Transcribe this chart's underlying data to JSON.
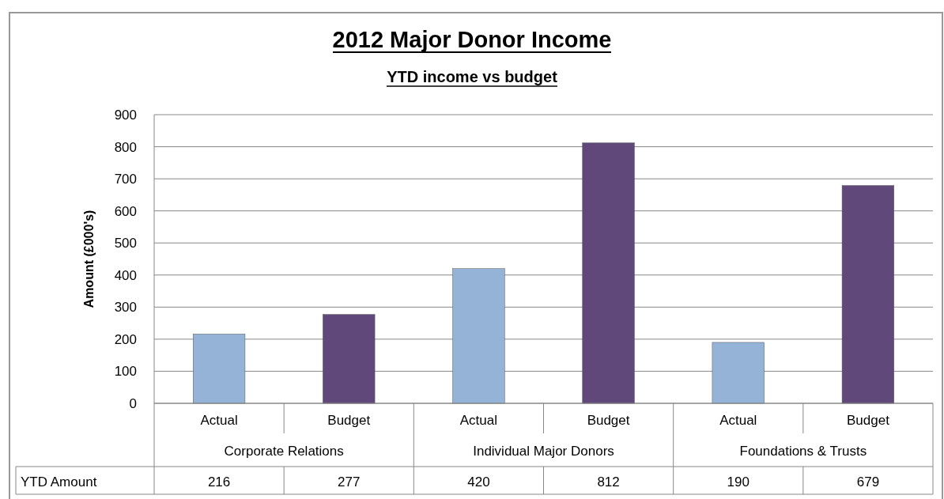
{
  "chart_data": {
    "type": "bar",
    "title": "2012 Major Donor Income",
    "subtitle": "YTD income vs budget",
    "ylabel": "Amount (£000's)",
    "categories": [
      "Actual",
      "Budget",
      "Actual",
      "Budget",
      "Actual",
      "Budget"
    ],
    "series": [
      {
        "name": "YTD Amount",
        "colors": [
          "#95b3d7",
          "#60497a",
          "#95b3d7",
          "#60497a",
          "#95b3d7",
          "#60497a"
        ],
        "values": [
          216,
          277,
          420,
          812,
          190,
          679
        ]
      }
    ],
    "annotations": [
      "Corporate Relations",
      "Individual Major Donors",
      "Foundations & Trusts"
    ],
    "ylim": [
      0,
      900
    ],
    "yticks": [
      0,
      100,
      200,
      300,
      400,
      500,
      600,
      700,
      800,
      900
    ],
    "grid": "y",
    "data_labels": true
  }
}
